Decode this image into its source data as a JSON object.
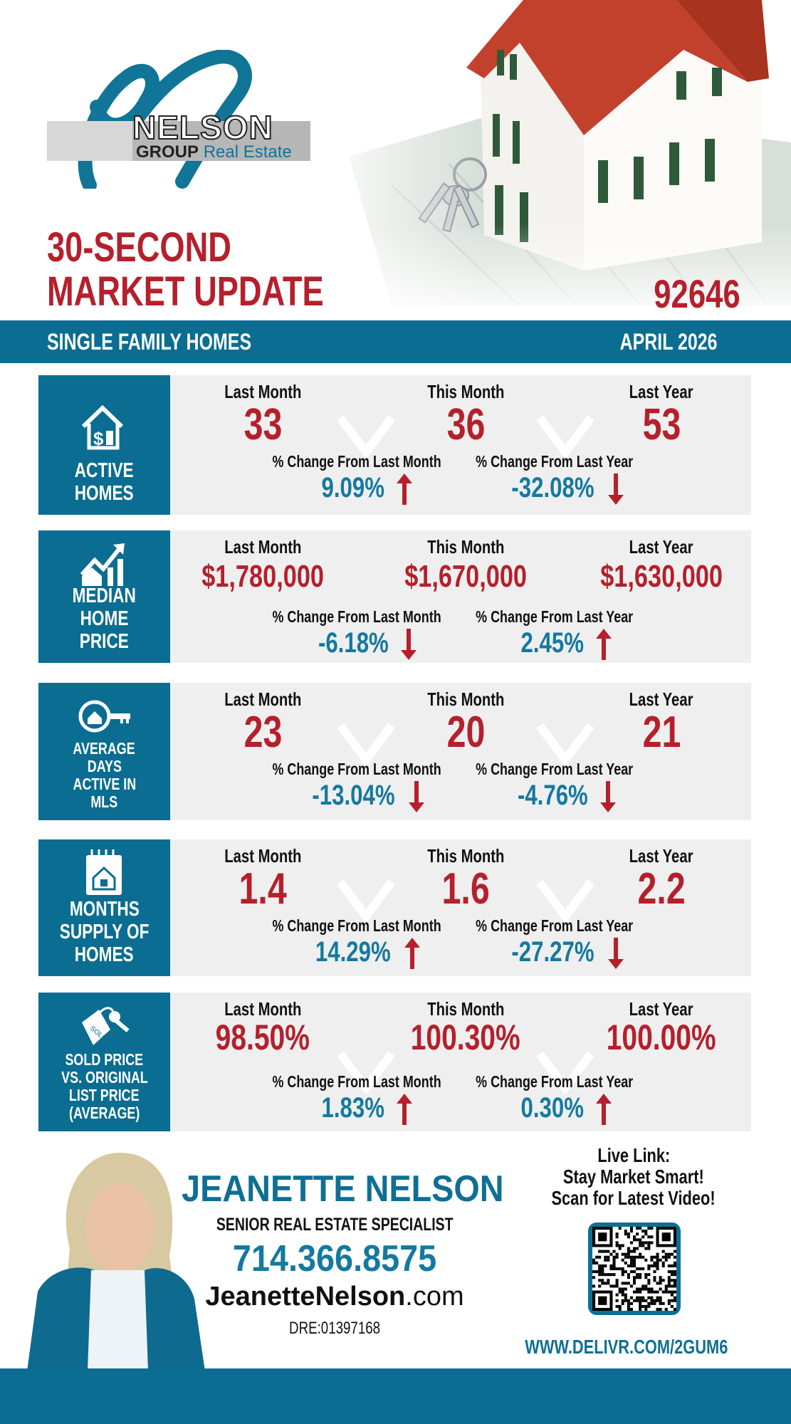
{
  "brand": {
    "logo_name": "NELSON",
    "logo_sub1": "GROUP",
    "logo_sub2": "Real Estate"
  },
  "header": {
    "title_line1": "30-SECOND",
    "title_line2": "MARKET UPDATE",
    "zip": "92646"
  },
  "banner": {
    "category": "SINGLE FAMILY HOMES",
    "period": "APRIL 2026"
  },
  "colors": {
    "teal": "#0a6d91",
    "red": "#b4202c",
    "blue": "#1479a0",
    "gray": "#efefef"
  },
  "column_labels": {
    "last_month": "Last Month",
    "this_month": "This Month",
    "last_year": "Last Year",
    "change_month": "% Change From Last Month",
    "change_year": "% Change From Last Year"
  },
  "cards": [
    {
      "id": "active-homes",
      "icon": "house-dollar-icon",
      "label": [
        "ACTIVE",
        "HOMES"
      ],
      "last_month": "33",
      "this_month": "36",
      "last_year": "53",
      "change_month": "9.09%",
      "change_month_dir": "up",
      "change_year": "-32.08%",
      "change_year_dir": "down"
    },
    {
      "id": "median-home-price",
      "icon": "house-growth-chart-icon",
      "label": [
        "MEDIAN",
        "HOME",
        "PRICE"
      ],
      "last_month": "$1,780,000",
      "this_month": "$1,670,000",
      "last_year": "$1,630,000",
      "change_month": "-6.18%",
      "change_month_dir": "down",
      "change_year": "2.45%",
      "change_year_dir": "up"
    },
    {
      "id": "average-days-active",
      "icon": "house-key-icon",
      "label": [
        "AVERAGE",
        "DAYS",
        "ACTIVE IN",
        "MLS"
      ],
      "last_month": "23",
      "this_month": "20",
      "last_year": "21",
      "change_month": "-13.04%",
      "change_month_dir": "down",
      "change_year": "-4.76%",
      "change_year_dir": "down"
    },
    {
      "id": "months-supply",
      "icon": "calendar-house-icon",
      "label": [
        "MONTHS",
        "SUPPLY OF",
        "HOMES"
      ],
      "last_month": "1.4",
      "this_month": "1.6",
      "last_year": "2.2",
      "change_month": "14.29%",
      "change_month_dir": "up",
      "change_year": "-27.27%",
      "change_year_dir": "down"
    },
    {
      "id": "sold-vs-list",
      "icon": "sold-tag-key-icon",
      "label": [
        "SOLD PRICE",
        "VS. ORIGINAL",
        "LIST PRICE",
        "(AVERAGE)"
      ],
      "last_month": "98.50%",
      "this_month": "100.30%",
      "last_year": "100.00%",
      "change_month": "1.83%",
      "change_month_dir": "up",
      "change_year": "0.30%",
      "change_year_dir": "up"
    }
  ],
  "agent": {
    "name": "JEANETTE NELSON",
    "title": "SENIOR REAL ESTATE SPECIALIST",
    "phone": "714.366.8575",
    "website_bold": "JeanetteNelson",
    "website_tld": ".com",
    "license": "DRE:01397168"
  },
  "live_link": {
    "line1": "Live Link:",
    "line2": "Stay Market Smart!",
    "line3": "Scan for Latest Video!",
    "url": "WWW.DELIVR.COM/2GUM6"
  }
}
